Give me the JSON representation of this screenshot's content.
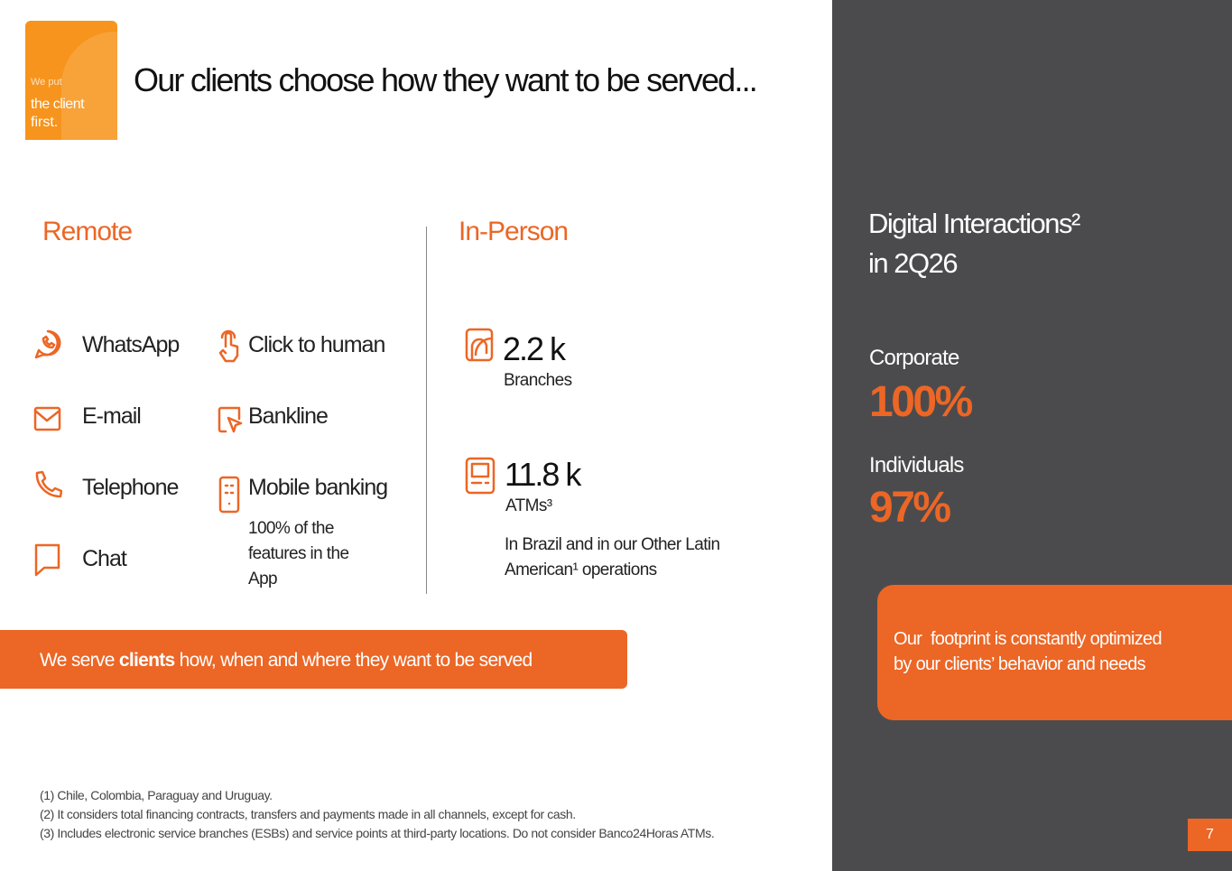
{
  "logo": {
    "line1": "We put",
    "line2": "the client",
    "line3": "first."
  },
  "title": "Our clients choose how they want to be served...",
  "remote": {
    "heading": "Remote",
    "channels": [
      "WhatsApp",
      "E-mail",
      "Telephone",
      "Chat",
      "Click to human",
      "Bankline",
      "Mobile banking"
    ],
    "note": "100% of the features in the App"
  },
  "in_person": {
    "heading": "In-Person",
    "branches": {
      "value": "2.2 k",
      "label": "Branches"
    },
    "atms": {
      "value": "11.8 k",
      "label": "ATMs³"
    },
    "note": "In Brazil and in our Other Latin American¹ operations"
  },
  "banner": {
    "before": "We serve ",
    "bold": "clients",
    "after": " how, when and where they want to be served"
  },
  "footnotes": [
    "(1) Chile, Colombia, Paraguay and Uruguay.",
    "(2) It considers total financing contracts, transfers and payments made in all channels, except for cash.",
    "(3) Includes electronic service branches (ESBs) and service points at third-party locations. Do not consider Banco24Horas ATMs."
  ],
  "panel": {
    "title_line1": "Digital Interactions²",
    "title_line2": "in 2Q26",
    "corporate": {
      "label": "Corporate",
      "value": "100%"
    },
    "individuals": {
      "label": "Individuals",
      "value": "97%"
    },
    "callout": "Our  footprint is constantly optimized by our clients’ behavior and needs"
  },
  "page_number": "7"
}
